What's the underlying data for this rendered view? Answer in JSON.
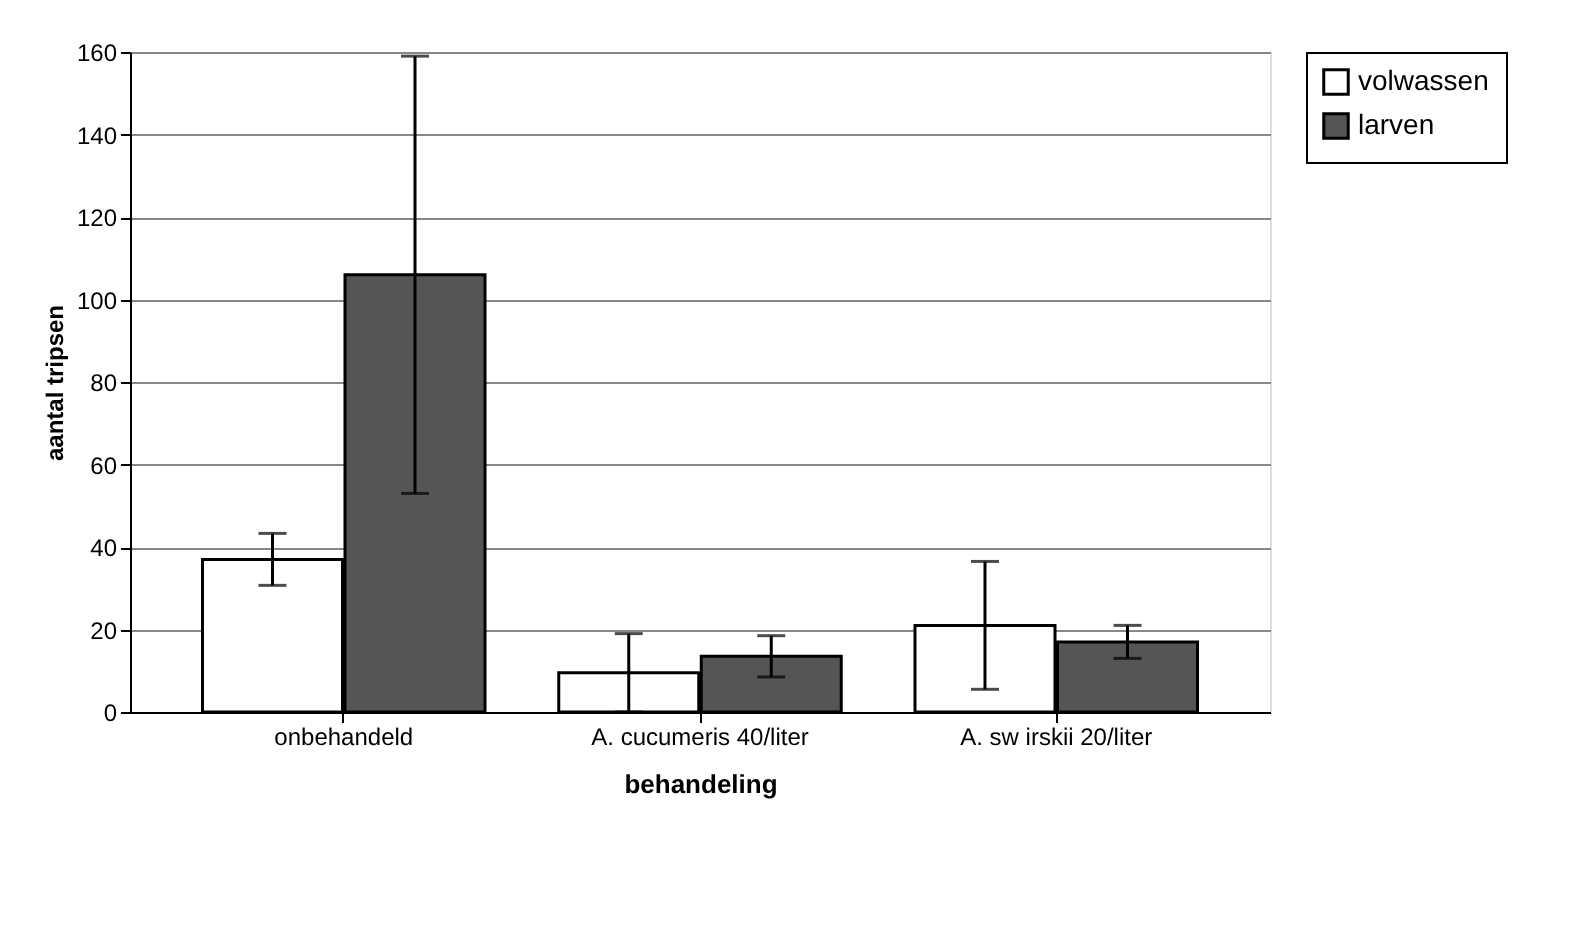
{
  "chart_data": {
    "type": "bar",
    "xlabel": "behandeling",
    "ylabel": "aantal tripsen",
    "categories": [
      "onbehandeld",
      "A. cucumeris 40/liter",
      "A. sw irskii 20/liter"
    ],
    "series": [
      {
        "name": "volwassen",
        "color": "#ffffff",
        "values": [
          37,
          9.5,
          21
        ],
        "errors": [
          6.3,
          9.5,
          15.5
        ]
      },
      {
        "name": "larven",
        "color": "#555555",
        "values": [
          106,
          13.5,
          17
        ],
        "errors": [
          53,
          5,
          4
        ]
      }
    ],
    "ylim": [
      0,
      160
    ],
    "yticks": [
      0,
      20,
      40,
      60,
      80,
      100,
      120,
      140,
      160
    ],
    "grid": "y",
    "legend": "right"
  }
}
